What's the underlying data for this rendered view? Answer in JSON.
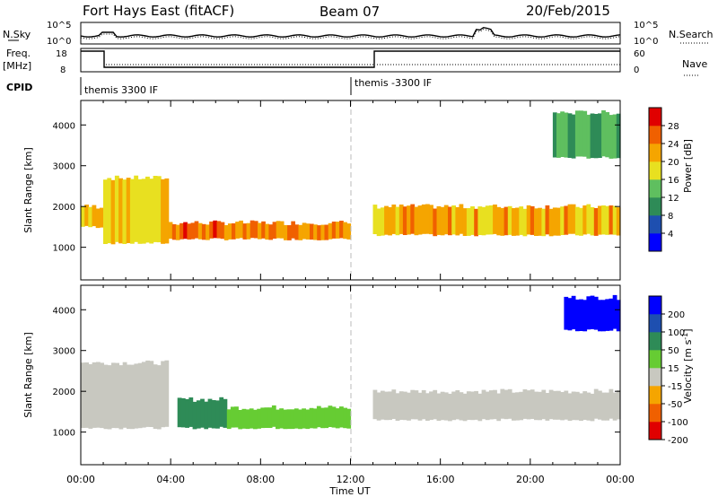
{
  "header": {
    "radar": "Fort Hays East (fitACF)",
    "beam": "Beam 07",
    "date": "20/Feb/2015"
  },
  "noise_panel": {
    "left_label": "N.Sky",
    "right_label": "N.Search",
    "left_ticks": [
      "10^5",
      "10^0"
    ],
    "right_ticks": [
      "10^5",
      "10^0"
    ]
  },
  "freq_panel": {
    "left_label_1": "Freq.",
    "left_label_2": "[MHz]",
    "right_label": "Nave",
    "left_ticks": [
      "18",
      "8"
    ],
    "right_ticks": [
      "60",
      "0"
    ]
  },
  "cpid_panel": {
    "label": "CPID",
    "modes": [
      {
        "name": "themis 3300 IF",
        "start_hour": 0,
        "end_hour": 12
      },
      {
        "name": "themis -3300 IF",
        "start_hour": 12,
        "end_hour": 24
      }
    ]
  },
  "power_panel": {
    "ylabel": "Slant Range [km]",
    "yticks": [
      "4000",
      "3000",
      "2000",
      "1000"
    ],
    "colorbar_label": "Power [dB]",
    "colorbar_ticks": [
      "28",
      "24",
      "20",
      "16",
      "12",
      "8",
      "4"
    ]
  },
  "velocity_panel": {
    "ylabel": "Slant Range [km]",
    "yticks": [
      "4000",
      "3000",
      "2000",
      "1000"
    ],
    "colorbar_label": "Velocity [m s",
    "colorbar_label_sup": "-1",
    "colorbar_label_end": "]",
    "colorbar_ticks": [
      "200",
      "100",
      "50",
      "15",
      "-15",
      "-50",
      "-100",
      "-200"
    ]
  },
  "xaxis": {
    "label": "Time UT",
    "ticks": [
      "00:00",
      "04:00",
      "08:00",
      "12:00",
      "16:00",
      "20:00",
      "00:00"
    ]
  },
  "colors": {
    "power": [
      "#0000ff",
      "#1e4fb0",
      "#2e8b57",
      "#5fbf5f",
      "#e8e020",
      "#f5a500",
      "#f06000",
      "#e00000"
    ],
    "velocity": [
      "#e00000",
      "#f06000",
      "#f5a500",
      "#c8c8c0",
      "#66cc33",
      "#2e8b57",
      "#1e4fb0",
      "#0000ff"
    ]
  },
  "chart_data": [
    {
      "type": "heatmap",
      "title": "Power",
      "ylabel": "Slant Range [km]",
      "xlabel": "Time UT",
      "xlim_hours": [
        0,
        24
      ],
      "ylim_km": [
        200,
        4600
      ],
      "zlabel": "Power [dB]",
      "zlim": [
        0,
        32
      ],
      "echo_bands": [
        {
          "t_start": 0.0,
          "t_end": 1.0,
          "range_start": 1500,
          "range_end": 2000,
          "power_peak": 22
        },
        {
          "t_start": 1.0,
          "t_end": 3.9,
          "range_start": 1100,
          "range_end": 2700,
          "power_peak": 20
        },
        {
          "t_start": 3.9,
          "t_end": 12.0,
          "range_start": 1200,
          "range_end": 1600,
          "power_peak": 26
        },
        {
          "t_start": 13.0,
          "t_end": 24.0,
          "range_start": 1300,
          "range_end": 2000,
          "power_peak": 22
        },
        {
          "t_start": 21.0,
          "t_end": 24.0,
          "range_start": 3200,
          "range_end": 4300,
          "power_peak": 12
        }
      ]
    },
    {
      "type": "heatmap",
      "title": "Velocity",
      "ylabel": "Slant Range [km]",
      "xlabel": "Time UT",
      "xlim_hours": [
        0,
        24
      ],
      "ylim_km": [
        200,
        4600
      ],
      "zlabel": "Velocity [m s-1]",
      "zlim": [
        -250,
        250
      ],
      "echo_bands": [
        {
          "t_start": 0.0,
          "t_end": 3.9,
          "range_start": 1100,
          "range_end": 2700,
          "velocity": 0
        },
        {
          "t_start": 4.3,
          "t_end": 6.5,
          "range_start": 1100,
          "range_end": 1800,
          "velocity": 60
        },
        {
          "t_start": 6.5,
          "t_end": 12.0,
          "range_start": 1100,
          "range_end": 1600,
          "velocity": 40
        },
        {
          "t_start": 13.0,
          "t_end": 24.0,
          "range_start": 1300,
          "range_end": 2000,
          "velocity": 0
        },
        {
          "t_start": 21.5,
          "t_end": 24.0,
          "range_start": 3500,
          "range_end": 4300,
          "velocity": 220
        }
      ]
    }
  ]
}
